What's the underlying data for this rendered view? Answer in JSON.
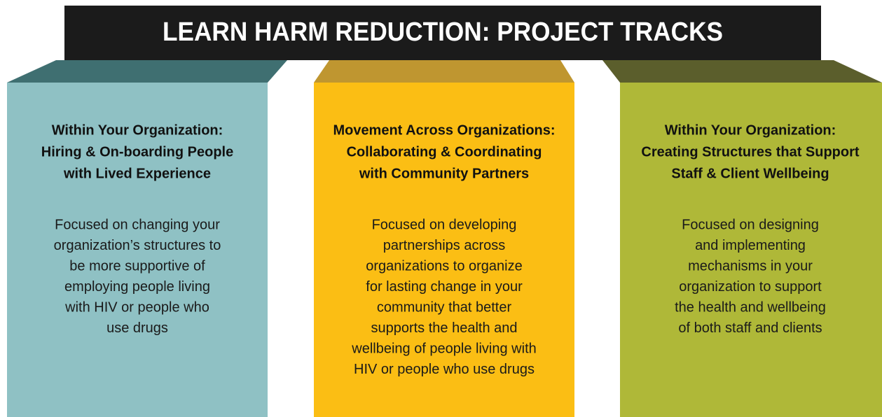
{
  "title": "LEARN HARM REDUCTION: PROJECT TRACKS",
  "tracks": [
    {
      "heading": [
        "Within Your Organization:",
        "Hiring & On-boarding People",
        "with Lived Experience"
      ],
      "body": [
        "Focused on changing your",
        "organization’s structures to",
        "be more supportive of",
        "employing people living",
        "with HIV or people who",
        "use drugs"
      ]
    },
    {
      "heading": [
        "Movement Across Organizations:",
        "Collaborating & Coordinating",
        "with Community Partners"
      ],
      "body": [
        "Focused on developing",
        "partnerships across",
        "organizations to organize",
        "for lasting change in your",
        "community that better",
        "supports the health and",
        "wellbeing of people living with",
        "HIV or people who use drugs"
      ]
    },
    {
      "heading": [
        "Within Your Organization:",
        "Creating Structures that Support",
        "Staff & Client Wellbeing"
      ],
      "body": [
        "Focused on designing",
        "and implementing",
        "mechanisms in your",
        "organization to support",
        "the health and wellbeing",
        "of both staff and clients"
      ]
    }
  ]
}
